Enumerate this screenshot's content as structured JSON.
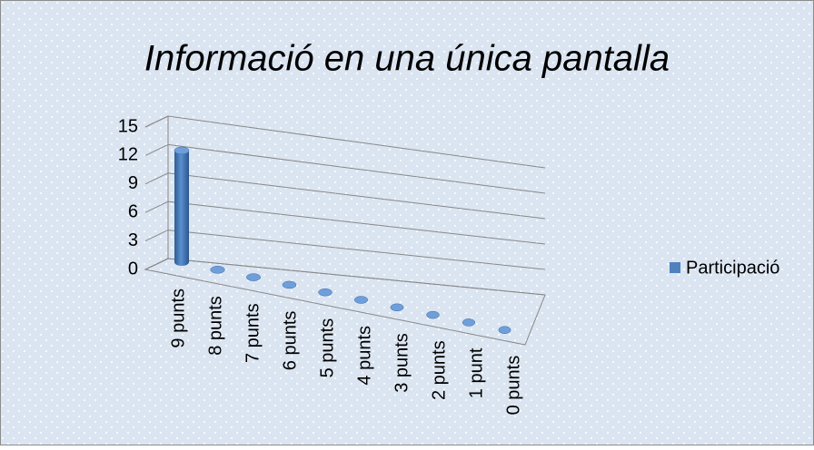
{
  "chart_data": {
    "type": "bar",
    "title": "Informació en una única pantalla",
    "categories": [
      "9 punts",
      "8 punts",
      "7 punts",
      "6 punts",
      "5 punts",
      "4 punts",
      "3 punts",
      "2 punts",
      "1 punt",
      "0 punts"
    ],
    "series": [
      {
        "name": "Participació",
        "color": "#4f81bd",
        "values": [
          12,
          0,
          0,
          0,
          0,
          0,
          0,
          0,
          0,
          0
        ]
      }
    ],
    "ylim": [
      0,
      15
    ],
    "yticks": [
      0,
      3,
      6,
      9,
      12,
      15
    ],
    "grid": true,
    "legend": "right"
  }
}
